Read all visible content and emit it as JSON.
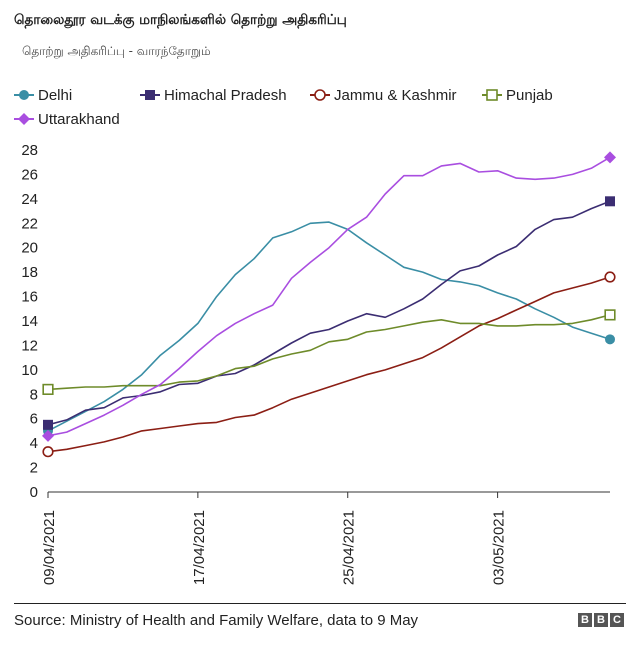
{
  "title": "தொலைதூர வடக்கு மாநிலங்களில் தொற்று அதிகரிப்பு",
  "subtitle": "தொற்று அதிகரிப்பு - வாரந்தோறும்",
  "source": "Source: Ministry of Health and Family Welfare, data to 9 May",
  "logo": [
    "B",
    "B",
    "C"
  ],
  "chart_data": {
    "type": "line",
    "title": "தொலைதூர வடக்கு மாநிலங்களில் தொற்று அதிகரிப்பு",
    "subtitle": "தொற்று அதிகரிப்பு - வாரந்தோறும்",
    "xlabel": "",
    "ylabel": "",
    "ylim": [
      0,
      28
    ],
    "yticks": [
      "0",
      "2",
      "4",
      "6",
      "8",
      "10",
      "12",
      "14",
      "16",
      "18",
      "20",
      "22",
      "24",
      "26",
      "28"
    ],
    "x_tick_labels": [
      "09/04/2021",
      "17/04/2021",
      "25/04/2021",
      "03/05/2021"
    ],
    "x_tick_index": [
      0,
      8,
      16,
      24
    ],
    "x": [
      "09/04/2021",
      "10/04/2021",
      "11/04/2021",
      "12/04/2021",
      "13/04/2021",
      "14/04/2021",
      "15/04/2021",
      "16/04/2021",
      "17/04/2021",
      "18/04/2021",
      "19/04/2021",
      "20/04/2021",
      "21/04/2021",
      "22/04/2021",
      "23/04/2021",
      "24/04/2021",
      "25/04/2021",
      "26/04/2021",
      "27/04/2021",
      "28/04/2021",
      "29/04/2021",
      "30/04/2021",
      "01/05/2021",
      "02/05/2021",
      "03/05/2021",
      "04/05/2021",
      "05/05/2021",
      "06/05/2021",
      "07/05/2021",
      "08/05/2021",
      "09/05/2021"
    ],
    "legend_position": "top",
    "grid": false,
    "series": [
      {
        "name": "Delhi",
        "color": "#3a8ea5",
        "marker": "circle-filled",
        "values": [
          5.0,
          5.8,
          6.6,
          7.4,
          8.4,
          9.6,
          11.2,
          12.4,
          13.8,
          16.0,
          17.8,
          19.1,
          20.8,
          21.3,
          22.0,
          22.1,
          21.5,
          20.4,
          19.4,
          18.4,
          18.0,
          17.4,
          17.2,
          16.9,
          16.3,
          15.8,
          15.0,
          14.3,
          13.5,
          13.0,
          12.5
        ]
      },
      {
        "name": "Himachal Pradesh",
        "color": "#3b2d72",
        "marker": "square-filled",
        "values": [
          5.5,
          5.9,
          6.7,
          6.9,
          7.7,
          7.9,
          8.2,
          8.8,
          8.9,
          9.5,
          9.7,
          10.4,
          11.3,
          12.2,
          13.0,
          13.3,
          14.0,
          14.6,
          14.3,
          15.0,
          15.8,
          17.0,
          18.1,
          18.5,
          19.4,
          20.1,
          21.5,
          22.3,
          22.5,
          23.2,
          23.8
        ]
      },
      {
        "name": "Jammu & Kashmir",
        "color": "#8b1e14",
        "marker": "circle-open",
        "values": [
          3.3,
          3.5,
          3.8,
          4.1,
          4.5,
          5.0,
          5.2,
          5.4,
          5.6,
          5.7,
          6.1,
          6.3,
          6.9,
          7.6,
          8.1,
          8.6,
          9.1,
          9.6,
          10.0,
          10.5,
          11.0,
          11.8,
          12.7,
          13.6,
          14.2,
          14.9,
          15.6,
          16.3,
          16.7,
          17.1,
          17.6
        ]
      },
      {
        "name": "Punjab",
        "color": "#6e8b2a",
        "marker": "square-open",
        "values": [
          8.4,
          8.5,
          8.6,
          8.6,
          8.7,
          8.7,
          8.7,
          9.0,
          9.1,
          9.5,
          10.1,
          10.3,
          10.9,
          11.3,
          11.6,
          12.3,
          12.5,
          13.1,
          13.3,
          13.6,
          13.9,
          14.1,
          13.8,
          13.8,
          13.6,
          13.6,
          13.7,
          13.7,
          13.8,
          14.1,
          14.5
        ]
      },
      {
        "name": "Uttarakhand",
        "color": "#a94ee0",
        "marker": "diamond-filled",
        "values": [
          4.6,
          4.9,
          5.6,
          6.3,
          7.1,
          8.0,
          8.8,
          10.1,
          11.5,
          12.8,
          13.8,
          14.6,
          15.3,
          17.5,
          18.8,
          20.0,
          21.5,
          22.5,
          24.4,
          25.9,
          25.9,
          26.7,
          26.9,
          26.2,
          26.3,
          25.7,
          25.6,
          25.7,
          26.0,
          26.5,
          27.4
        ]
      }
    ]
  }
}
